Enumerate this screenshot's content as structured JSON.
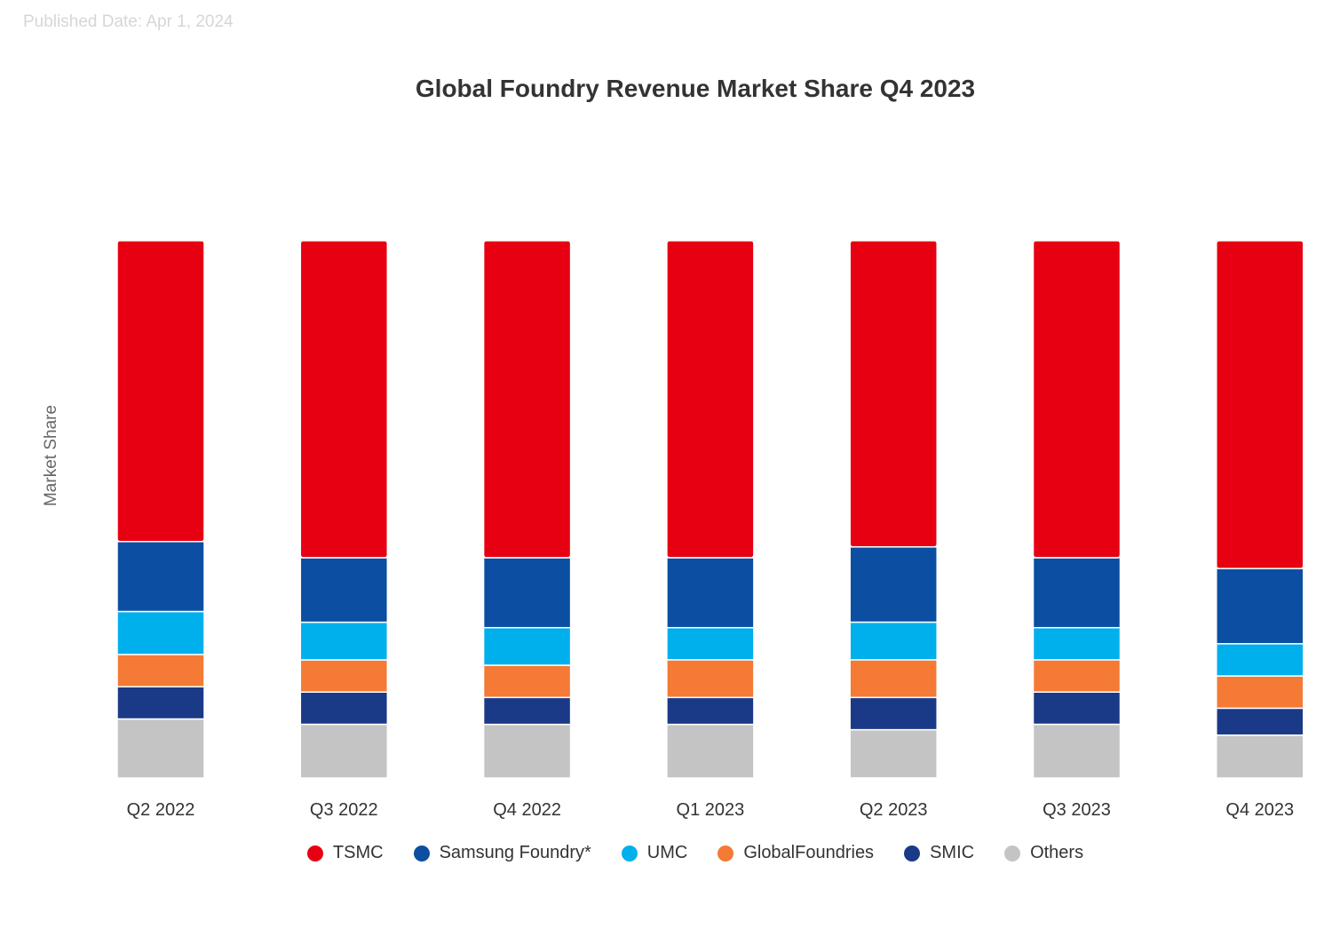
{
  "published": "Published Date: Apr 1, 2024",
  "chart_data": {
    "type": "bar",
    "stacked": true,
    "title": "Global Foundry Revenue Market Share Q4 2023",
    "xlabel": "",
    "ylabel": "Market Share",
    "ylim": [
      0,
      100
    ],
    "grid": false,
    "legend_position": "bottom",
    "categories": [
      "Q2 2022",
      "Q3 2022",
      "Q4 2022",
      "Q1 2023",
      "Q2 2023",
      "Q3 2023",
      "Q4 2023"
    ],
    "series": [
      {
        "name": "TSMC",
        "color": "#e60012",
        "values": [
          56,
          59,
          59,
          59,
          57,
          59,
          61
        ]
      },
      {
        "name": "Samsung Foundry*",
        "color": "#0b4ea2",
        "values": [
          13,
          12,
          13,
          13,
          14,
          13,
          14
        ]
      },
      {
        "name": "UMC",
        "color": "#00b0ec",
        "values": [
          8,
          7,
          7,
          6,
          7,
          6,
          6
        ]
      },
      {
        "name": "GlobalFoundries",
        "color": "#f47a35",
        "values": [
          6,
          6,
          6,
          7,
          7,
          6,
          6
        ]
      },
      {
        "name": "SMIC",
        "color": "#1a3a87",
        "values": [
          6,
          6,
          5,
          5,
          6,
          6,
          5
        ]
      },
      {
        "name": "Others",
        "color": "#c4c4c4",
        "values": [
          11,
          10,
          10,
          10,
          9,
          10,
          8
        ]
      }
    ]
  }
}
